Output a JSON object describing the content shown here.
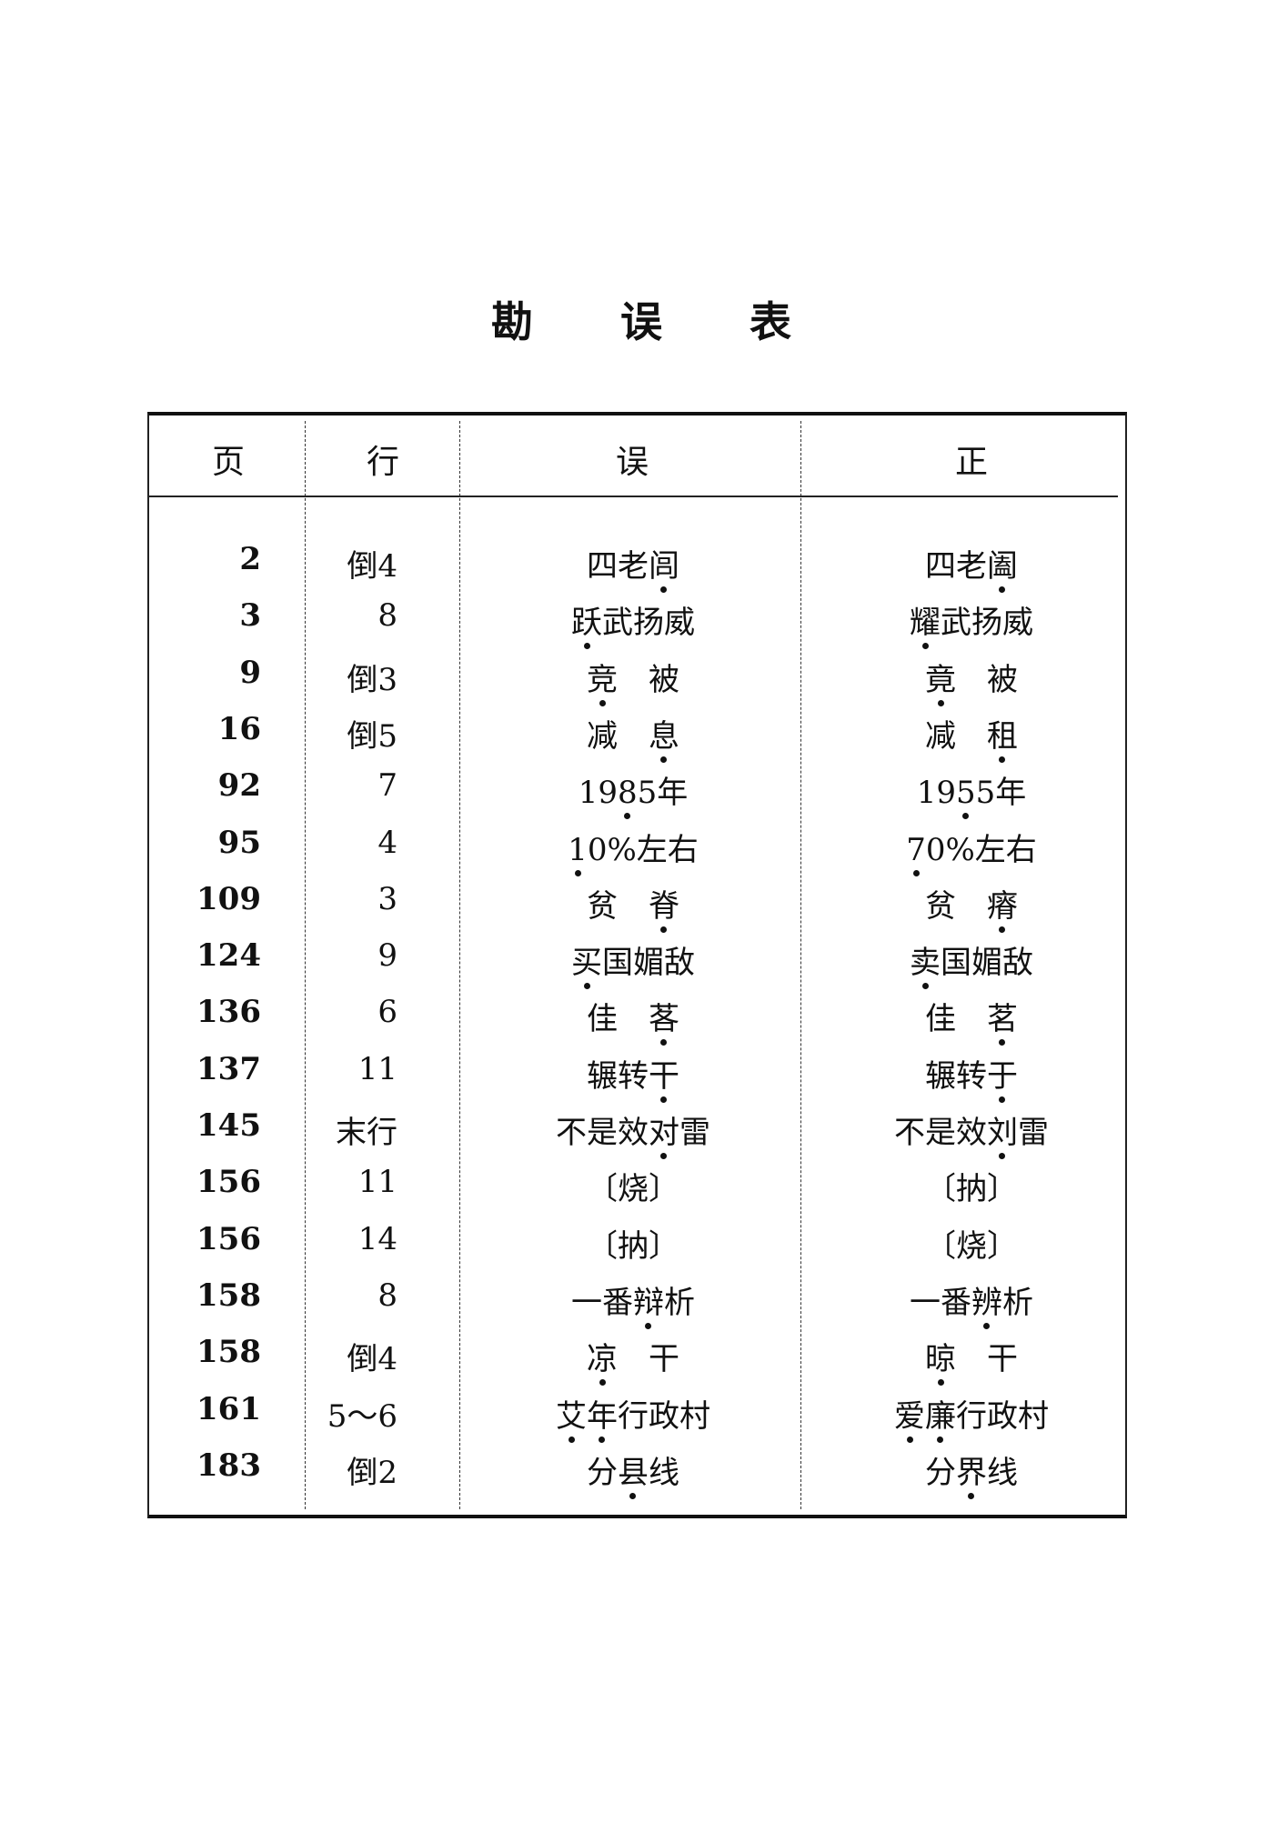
{
  "title": [
    "勘",
    "误",
    "表"
  ],
  "headers": {
    "page": "页",
    "line": "行",
    "wrong": "误",
    "correct": "正"
  },
  "rows": [
    {
      "page": "2",
      "line": "倒4",
      "wrong": "四老闾",
      "wrong_marked": [
        2
      ],
      "correct": "四老阖",
      "correct_marked": [
        2
      ]
    },
    {
      "page": "3",
      "line": "8",
      "wrong": "跃武扬威",
      "wrong_marked": [
        0
      ],
      "correct": "耀武扬威",
      "correct_marked": [
        0
      ]
    },
    {
      "page": "9",
      "line": "倒3",
      "wrong": "竞　被",
      "wrong_marked": [
        0
      ],
      "correct": "竟　被",
      "correct_marked": [
        0
      ]
    },
    {
      "page": "16",
      "line": "倒5",
      "wrong": "减　息",
      "wrong_marked": [
        2
      ],
      "correct": "减　租",
      "correct_marked": [
        2
      ]
    },
    {
      "page": "92",
      "line": "7",
      "wrong": "1985年",
      "wrong_marked": [
        2
      ],
      "correct": "1955年",
      "correct_marked": [
        2
      ]
    },
    {
      "page": "95",
      "line": "4",
      "wrong": "10%左右",
      "wrong_marked": [
        0
      ],
      "correct": "70%左右",
      "correct_marked": [
        0
      ]
    },
    {
      "page": "109",
      "line": "3",
      "wrong": "贫　脊",
      "wrong_marked": [
        2
      ],
      "correct": "贫　瘠",
      "correct_marked": [
        2
      ]
    },
    {
      "page": "124",
      "line": "9",
      "wrong": "买国媚敌",
      "wrong_marked": [
        0
      ],
      "correct": "卖国媚敌",
      "correct_marked": [
        0
      ]
    },
    {
      "page": "136",
      "line": "6",
      "wrong": "佳　茖",
      "wrong_marked": [
        2
      ],
      "correct": "佳　茗",
      "correct_marked": [
        2
      ]
    },
    {
      "page": "137",
      "line": "11",
      "wrong": "辗转干",
      "wrong_marked": [
        2
      ],
      "correct": "辗转于",
      "correct_marked": [
        2
      ]
    },
    {
      "page": "145",
      "line": "末行",
      "wrong": "不是效对雷",
      "wrong_marked": [
        3
      ],
      "correct": "不是效刘雷",
      "correct_marked": [
        3
      ]
    },
    {
      "page": "156",
      "line": "11",
      "wrong": "〔烧〕",
      "wrong_marked": [],
      "correct": "〔抐〕",
      "correct_marked": []
    },
    {
      "page": "156",
      "line": "14",
      "wrong": "〔抐〕",
      "wrong_marked": [],
      "correct": "〔烧〕",
      "correct_marked": []
    },
    {
      "page": "158",
      "line": "8",
      "wrong": "一番辩析",
      "wrong_marked": [
        2
      ],
      "correct": "一番辨析",
      "correct_marked": [
        2
      ]
    },
    {
      "page": "158",
      "line": "倒4",
      "wrong": "凉　干",
      "wrong_marked": [
        0
      ],
      "correct": "晾　干",
      "correct_marked": [
        0
      ]
    },
    {
      "page": "161",
      "line": "5～6",
      "wrong": "艾年行政村",
      "wrong_marked": [
        0,
        1
      ],
      "correct": "爱廉行政村",
      "correct_marked": [
        0,
        1
      ]
    },
    {
      "page": "183",
      "line": "倒2",
      "wrong": "分县线",
      "wrong_marked": [
        1
      ],
      "correct": "分界线",
      "correct_marked": [
        1
      ]
    }
  ]
}
